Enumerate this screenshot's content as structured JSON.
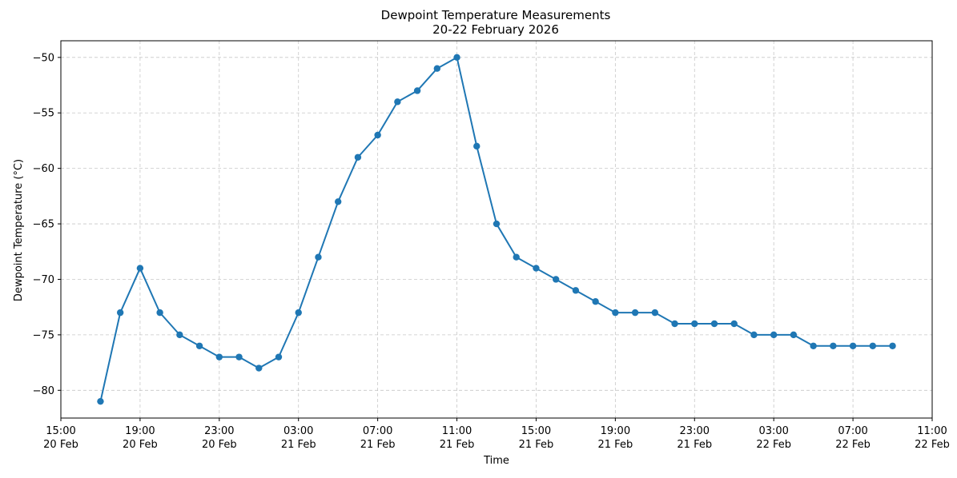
{
  "chart_data": {
    "type": "line",
    "title": "Dewpoint Temperature Measurements",
    "subtitle": "20-22 February 2026",
    "xlabel": "Time",
    "ylabel": "Dewpoint Temperature (°C)",
    "grid": true,
    "color": "#1f77b4",
    "xlim_hours": [
      0,
      44
    ],
    "ylim": [
      -82.5,
      -48.5
    ],
    "y_ticks": [
      -50,
      -55,
      -60,
      -65,
      -70,
      -75,
      -80
    ],
    "y_tick_labels": [
      "−50",
      "−55",
      "−60",
      "−65",
      "−70",
      "−75",
      "−80"
    ],
    "x_ticks": [
      {
        "time": "15:00",
        "date": "20 Feb"
      },
      {
        "time": "19:00",
        "date": "20 Feb"
      },
      {
        "time": "23:00",
        "date": "20 Feb"
      },
      {
        "time": "03:00",
        "date": "21 Feb"
      },
      {
        "time": "07:00",
        "date": "21 Feb"
      },
      {
        "time": "11:00",
        "date": "21 Feb"
      },
      {
        "time": "15:00",
        "date": "21 Feb"
      },
      {
        "time": "19:00",
        "date": "21 Feb"
      },
      {
        "time": "23:00",
        "date": "21 Feb"
      },
      {
        "time": "03:00",
        "date": "22 Feb"
      },
      {
        "time": "07:00",
        "date": "22 Feb"
      },
      {
        "time": "11:00",
        "date": "22 Feb"
      }
    ],
    "series": [
      {
        "x": [
          "20 Feb 17:00",
          "20 Feb 18:00",
          "20 Feb 19:00",
          "20 Feb 20:00",
          "20 Feb 21:00",
          "20 Feb 22:00",
          "20 Feb 23:00",
          "21 Feb 00:00",
          "21 Feb 01:00",
          "21 Feb 02:00",
          "21 Feb 03:00",
          "21 Feb 04:00",
          "21 Feb 05:00",
          "21 Feb 06:00",
          "21 Feb 07:00",
          "21 Feb 08:00",
          "21 Feb 09:00",
          "21 Feb 10:00",
          "21 Feb 11:00",
          "21 Feb 12:00",
          "21 Feb 13:00",
          "21 Feb 14:00",
          "21 Feb 15:00",
          "21 Feb 16:00",
          "21 Feb 17:00",
          "21 Feb 18:00",
          "21 Feb 19:00",
          "21 Feb 20:00",
          "21 Feb 21:00",
          "21 Feb 22:00",
          "21 Feb 23:00",
          "22 Feb 00:00",
          "22 Feb 01:00",
          "22 Feb 02:00",
          "22 Feb 03:00",
          "22 Feb 04:00",
          "22 Feb 05:00",
          "22 Feb 06:00",
          "22 Feb 07:00",
          "22 Feb 08:00",
          "22 Feb 09:00"
        ],
        "hours_from_start": [
          2,
          3,
          4,
          5,
          6,
          7,
          8,
          9,
          10,
          11,
          12,
          13,
          14,
          15,
          16,
          17,
          18,
          19,
          20,
          21,
          22,
          23,
          24,
          25,
          26,
          27,
          28,
          29,
          30,
          31,
          32,
          33,
          34,
          35,
          36,
          37,
          38,
          39,
          40,
          41,
          42
        ],
        "values": [
          -81,
          -73,
          -69,
          -73,
          -75,
          -76,
          -77,
          -77,
          -78,
          -77,
          -73,
          -68,
          -63,
          -59,
          -57,
          -54,
          -53,
          -51,
          -50,
          -58,
          -65,
          -68,
          -69,
          -70,
          -71,
          -72,
          -73,
          -73,
          -73,
          -74,
          -74,
          -74,
          -74,
          -75,
          -75,
          -75,
          -76,
          -76,
          -76,
          -76,
          -76
        ]
      }
    ]
  }
}
